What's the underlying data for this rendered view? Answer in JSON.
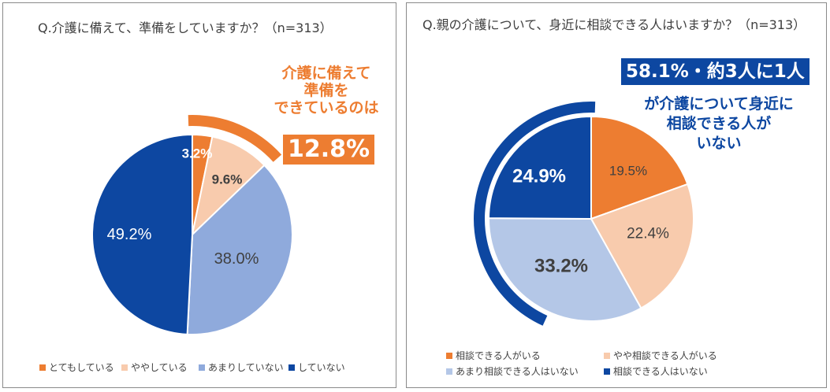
{
  "chart_data": [
    {
      "type": "pie",
      "title": "Q.介護に備えて、準備をしていますか？（n=313）",
      "categories": [
        "とてもしている",
        "ややしている",
        "あまりしていない",
        "していない"
      ],
      "values": [
        3.2,
        9.6,
        38.0,
        49.2
      ],
      "labels": [
        "3.2%",
        "9.6%",
        "38.0%",
        "49.2%"
      ],
      "colors": [
        "#ED7D31",
        "#F8CBAD",
        "#8FAADC",
        "#0D47A1"
      ],
      "label_colors": [
        "#ffffff",
        "#404040",
        "#404040",
        "#ffffff"
      ],
      "label_bold": [
        true,
        true,
        false,
        false
      ],
      "legend_position": "bottom",
      "callout": {
        "lines": [
          "介護に備えて",
          "準備を",
          "できているのは"
        ],
        "value": "12.8%",
        "color": "#ED7D31"
      }
    },
    {
      "type": "pie",
      "title": "Q.親の介護について、身近に相談できる人はいますか？（n=313）",
      "categories": [
        "相談できる人がいる",
        "やや相談できる人がいる",
        "あまり相談できる人はいない",
        "相談できる人はいない"
      ],
      "values": [
        19.5,
        22.4,
        33.2,
        24.9
      ],
      "labels": [
        "19.5%",
        "22.4%",
        "33.2%",
        "24.9%"
      ],
      "colors": [
        "#ED7D31",
        "#F8CBAD",
        "#B4C7E7",
        "#0D47A1"
      ],
      "label_colors": [
        "#404040",
        "#404040",
        "#404040",
        "#ffffff"
      ],
      "label_bold": [
        false,
        false,
        true,
        true
      ],
      "legend_position": "bottom",
      "callout": {
        "value": "58.1%・約3人に1人",
        "lines": [
          "が介護について身近に",
          "相談できる人が",
          "いない"
        ],
        "color": "#0D47A1"
      }
    }
  ]
}
